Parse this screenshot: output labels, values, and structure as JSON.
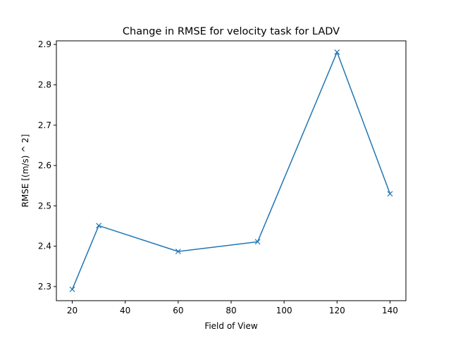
{
  "chart_data": {
    "type": "line",
    "title": "Change in RMSE for velocity task for LADV",
    "xlabel": "Field of View",
    "ylabel": "RMSE [(m/s) ^ 2]",
    "xlim": [
      14,
      146
    ],
    "ylim": [
      2.265,
      2.909
    ],
    "xticks": [
      20,
      40,
      60,
      80,
      100,
      120,
      140
    ],
    "yticks": [
      2.3,
      2.4,
      2.5,
      2.6,
      2.7,
      2.8,
      2.9
    ],
    "xtick_labels": [
      "20",
      "40",
      "60",
      "80",
      "100",
      "120",
      "140"
    ],
    "ytick_labels": [
      "2.3",
      "2.4",
      "2.5",
      "2.6",
      "2.7",
      "2.8",
      "2.9"
    ],
    "grid": false,
    "marker": "x",
    "line_color": "#1f77b4",
    "series": [
      {
        "x": [
          20,
          30,
          60,
          90,
          120,
          140
        ],
        "y": [
          2.293,
          2.451,
          2.387,
          2.411,
          2.881,
          2.53
        ]
      }
    ]
  }
}
